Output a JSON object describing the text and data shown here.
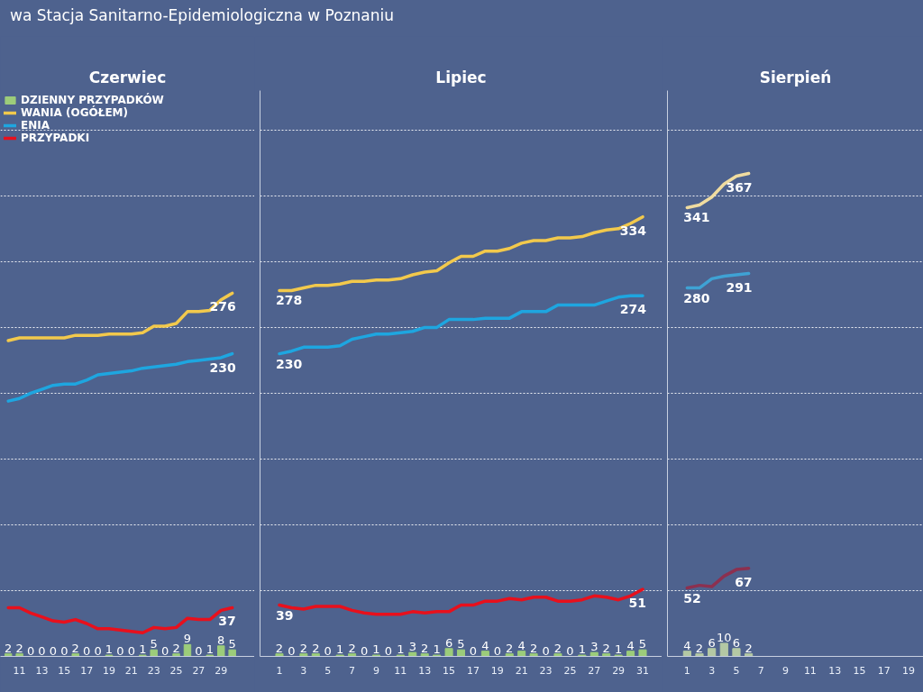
{
  "chart_data": [
    {
      "type": "line",
      "title": "Czerwiec",
      "annotations": [
        "wa Stacja Sanitarno-Epidemiologiczna w Poznaniu"
      ],
      "x": [
        10,
        11,
        12,
        13,
        14,
        15,
        16,
        17,
        18,
        19,
        20,
        21,
        22,
        23,
        24,
        25,
        26,
        27,
        28,
        29,
        30
      ],
      "xlim": [
        9.3,
        32
      ],
      "xticks": [
        11,
        13,
        15,
        17,
        19,
        21,
        23,
        25,
        27,
        29
      ],
      "ylim": [
        0,
        430
      ],
      "yticks": [
        {
          "value": 50,
          "label": null
        },
        {
          "value": 100,
          "label": null
        },
        {
          "value": 150,
          "label": null
        },
        {
          "value": 200,
          "label": null
        },
        {
          "value": 250,
          "label": null
        },
        {
          "value": 300,
          "label": null
        },
        {
          "value": 350,
          "label": null
        },
        {
          "value": 400,
          "label": null
        }
      ],
      "grid": "y",
      "tick_labels": "x",
      "legend": "top left",
      "series": [
        {
          "name": "DZIENNY PRZYPADKÓW",
          "type": "bar",
          "color": "#9ccc7a",
          "values": [
            2,
            2,
            0,
            0,
            0,
            0,
            2,
            0,
            0,
            1,
            0,
            0,
            1,
            5,
            0,
            2,
            9,
            0,
            1,
            8,
            5
          ],
          "value_labels": [
            "2",
            "2",
            "0",
            "0",
            "0",
            "0",
            "2",
            "0",
            "0",
            "1",
            "0",
            "0",
            "1",
            "5",
            "0",
            "2",
            "9",
            "0",
            "1",
            "8",
            "5"
          ]
        },
        {
          "name": "WANIA (OGÓŁEM)",
          "type": "line",
          "color": "#f2c94c",
          "values": [
            240,
            242,
            242,
            242,
            242,
            242,
            244,
            244,
            244,
            245,
            245,
            245,
            246,
            251,
            251,
            253,
            262,
            262,
            263,
            271,
            276
          ],
          "value_labels": [
            null,
            null,
            null,
            null,
            null,
            null,
            null,
            null,
            null,
            null,
            null,
            null,
            null,
            null,
            null,
            null,
            null,
            null,
            null,
            null,
            "276"
          ]
        },
        {
          "name": "ENIA",
          "type": "line",
          "color": "#1ea6e0",
          "values": [
            194,
            196,
            200,
            203,
            206,
            207,
            207,
            210,
            214,
            215,
            216,
            217,
            219,
            220,
            221,
            222,
            224,
            225,
            226,
            227,
            230
          ],
          "value_labels": [
            null,
            null,
            null,
            null,
            null,
            null,
            null,
            null,
            null,
            null,
            null,
            null,
            null,
            null,
            null,
            null,
            null,
            null,
            null,
            null,
            "230"
          ]
        },
        {
          "name": "PRZYPADKI",
          "type": "line",
          "color": "#e8101c",
          "values": [
            37,
            37,
            33,
            30,
            27,
            26,
            28,
            25,
            21,
            21,
            20,
            19,
            18,
            22,
            21,
            22,
            29,
            28,
            28,
            35,
            37
          ],
          "value_labels": [
            null,
            null,
            null,
            null,
            null,
            null,
            null,
            null,
            null,
            null,
            null,
            null,
            null,
            null,
            null,
            null,
            null,
            null,
            null,
            null,
            "37"
          ]
        }
      ]
    },
    {
      "type": "line",
      "title": "Lipiec",
      "x": [
        1,
        2,
        3,
        4,
        5,
        6,
        7,
        8,
        9,
        10,
        11,
        12,
        13,
        14,
        15,
        16,
        17,
        18,
        19,
        20,
        21,
        22,
        23,
        24,
        25,
        26,
        27,
        28,
        29,
        30,
        31
      ],
      "xlim": [
        -0.6,
        32.6
      ],
      "xticks": [
        1,
        3,
        5,
        7,
        9,
        11,
        13,
        15,
        17,
        19,
        21,
        23,
        25,
        27,
        29,
        31
      ],
      "ylim": [
        0,
        430
      ],
      "yticks": [
        {
          "value": 50,
          "label": null
        },
        {
          "value": 100,
          "label": null
        },
        {
          "value": 150,
          "label": null
        },
        {
          "value": 200,
          "label": null
        },
        {
          "value": 250,
          "label": null
        },
        {
          "value": 300,
          "label": null
        },
        {
          "value": 350,
          "label": null
        },
        {
          "value": 400,
          "label": null
        }
      ],
      "grid": "y",
      "tick_labels": "x",
      "series": [
        {
          "type": "bar",
          "color": "#9ccc7a",
          "values": [
            2,
            0,
            2,
            2,
            0,
            1,
            2,
            0,
            1,
            0,
            1,
            3,
            2,
            1,
            6,
            5,
            0,
            4,
            0,
            2,
            4,
            2,
            0,
            2,
            0,
            1,
            3,
            2,
            1,
            4,
            5
          ],
          "value_labels": [
            "2",
            "0",
            "2",
            "2",
            "0",
            "1",
            "2",
            "0",
            "1",
            "0",
            "1",
            "3",
            "2",
            "1",
            "6",
            "5",
            "0",
            "4",
            "0",
            "2",
            "4",
            "2",
            "0",
            "2",
            "0",
            "1",
            "3",
            "2",
            "1",
            "4",
            "5"
          ]
        },
        {
          "type": "line",
          "color": "#f2c94c",
          "values": [
            278,
            278,
            280,
            282,
            282,
            283,
            285,
            285,
            286,
            286,
            287,
            290,
            292,
            293,
            299,
            304,
            304,
            308,
            308,
            310,
            314,
            316,
            316,
            318,
            318,
            319,
            322,
            324,
            325,
            329,
            334
          ],
          "value_labels": [
            "278",
            null,
            null,
            null,
            null,
            null,
            null,
            null,
            null,
            null,
            null,
            null,
            null,
            null,
            null,
            null,
            null,
            null,
            null,
            null,
            null,
            null,
            null,
            null,
            null,
            null,
            null,
            null,
            null,
            null,
            "334"
          ]
        },
        {
          "type": "line",
          "color": "#1ea6e0",
          "values": [
            230,
            232,
            235,
            235,
            235,
            236,
            241,
            243,
            245,
            245,
            246,
            247,
            250,
            250,
            256,
            256,
            256,
            257,
            257,
            257,
            262,
            262,
            262,
            267,
            267,
            267,
            267,
            270,
            273,
            274,
            274
          ],
          "value_labels": [
            "230",
            null,
            null,
            null,
            null,
            null,
            null,
            null,
            null,
            null,
            null,
            null,
            null,
            null,
            null,
            null,
            null,
            null,
            null,
            null,
            null,
            null,
            null,
            null,
            null,
            null,
            null,
            null,
            null,
            null,
            "274"
          ]
        },
        {
          "type": "line",
          "color": "#e8101c",
          "values": [
            39,
            37,
            36,
            38,
            38,
            38,
            35,
            33,
            32,
            32,
            32,
            34,
            33,
            34,
            34,
            39,
            39,
            42,
            42,
            44,
            43,
            45,
            45,
            42,
            42,
            43,
            46,
            45,
            43,
            46,
            51
          ],
          "value_labels": [
            "39",
            null,
            null,
            null,
            null,
            null,
            null,
            null,
            null,
            null,
            null,
            null,
            null,
            null,
            null,
            null,
            null,
            null,
            null,
            null,
            null,
            null,
            null,
            null,
            null,
            null,
            null,
            null,
            null,
            null,
            "51"
          ]
        }
      ]
    },
    {
      "type": "line",
      "title": "Sierpień",
      "x": [
        1,
        2,
        3,
        4,
        5,
        6
      ],
      "xlim": [
        -0.6,
        20.2
      ],
      "xticks": [
        1,
        3,
        5,
        7,
        9,
        11,
        13,
        15,
        17,
        19
      ],
      "ylim": [
        0,
        430
      ],
      "yticks": [
        {
          "value": 50,
          "label": null
        },
        {
          "value": 100,
          "label": null
        },
        {
          "value": 150,
          "label": null
        },
        {
          "value": 200,
          "label": null
        },
        {
          "value": 250,
          "label": null
        },
        {
          "value": 300,
          "label": null
        },
        {
          "value": 350,
          "label": null
        },
        {
          "value": 400,
          "label": null
        }
      ],
      "grid": "y",
      "tick_labels": "x",
      "series": [
        {
          "type": "bar",
          "color": "#b4c8a4",
          "values": [
            4,
            2,
            6,
            10,
            6,
            2
          ],
          "value_labels": [
            "4",
            "2",
            "6",
            "10",
            "6",
            "2"
          ]
        },
        {
          "type": "line",
          "color": "#f0dca0",
          "values": [
            341,
            343,
            349,
            359,
            365,
            367
          ],
          "value_labels": [
            "341",
            null,
            null,
            null,
            null,
            "367"
          ]
        },
        {
          "type": "line",
          "color": "#3fa2d4",
          "values": [
            280,
            280,
            287,
            289,
            290,
            291
          ],
          "value_labels": [
            "280",
            null,
            null,
            null,
            null,
            "291"
          ]
        },
        {
          "type": "line",
          "color": "#8c3050",
          "values": [
            52,
            54,
            53,
            61,
            66,
            67
          ],
          "value_labels": [
            "52",
            null,
            null,
            null,
            null,
            "67"
          ]
        }
      ]
    }
  ]
}
